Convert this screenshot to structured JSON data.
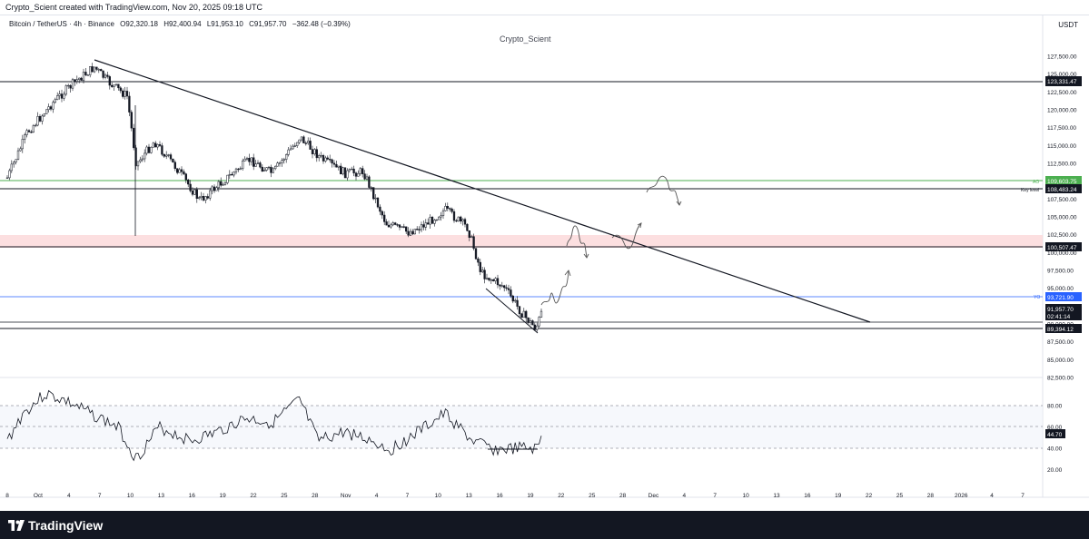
{
  "header": {
    "credit": "Crypto_Scient created with TradingView.com, Nov 20, 2025 09:18 UTC"
  },
  "legend": {
    "symbol": "Bitcoin / TetherUS · 4h · Binance",
    "open": "O92,320.18",
    "high": "H92,400.94",
    "low": "L91,953.10",
    "close": "C91,957.70",
    "change": "−362.48 (−0.39%)"
  },
  "currency": "USDT",
  "author": "Crypto_Scient",
  "price_axis": {
    "ticks": [
      "127,500.00",
      "125,000.00",
      "122,500.00",
      "120,000.00",
      "117,500.00",
      "115,000.00",
      "112,500.00",
      "110,000.00",
      "107,500.00",
      "105,000.00",
      "102,500.00",
      "100,000.00",
      "97,500.00",
      "95,000.00",
      "92,500.00",
      "90,000.00",
      "87,500.00",
      "85,000.00",
      "82,500.00"
    ],
    "tick_values": [
      127500,
      125000,
      122500,
      120000,
      117500,
      115000,
      112500,
      110000,
      107500,
      105000,
      102500,
      100000,
      97500,
      95000,
      92500,
      90000,
      87500,
      85000,
      82500
    ]
  },
  "badges": {
    "level_top": "123,331.47",
    "ao_value": "109,603.75",
    "ao_tag": "AO",
    "key_level": "108,483.24",
    "key_level_tag": "Key level",
    "level_100k": "100,507.47",
    "yo_value": "93,721.90",
    "yo_tag": "YO",
    "last_price": "91,957.70",
    "countdown": "02:41:14",
    "level_bottom": "89,394.12"
  },
  "rsi_axis": {
    "ticks": [
      "80.00",
      "60.00",
      "40.00",
      "20.00"
    ],
    "value": "44.70"
  },
  "time_axis": {
    "labels": [
      "8",
      "Oct",
      "4",
      "7",
      "10",
      "13",
      "16",
      "19",
      "22",
      "25",
      "28",
      "Nov",
      "4",
      "7",
      "10",
      "13",
      "16",
      "19",
      "22",
      "25",
      "28",
      "Dec",
      "4",
      "7",
      "10",
      "13",
      "16",
      "19",
      "22",
      "25",
      "28",
      "2026",
      "4",
      "7"
    ]
  },
  "colors": {
    "ao_green": "#4caf50",
    "yo_blue": "#2962ff",
    "resistance_zone": "#f7c6c7",
    "badge_dark": "#131722",
    "rsi_line": "#131722"
  },
  "footer": {
    "brand": "TradingView"
  }
}
